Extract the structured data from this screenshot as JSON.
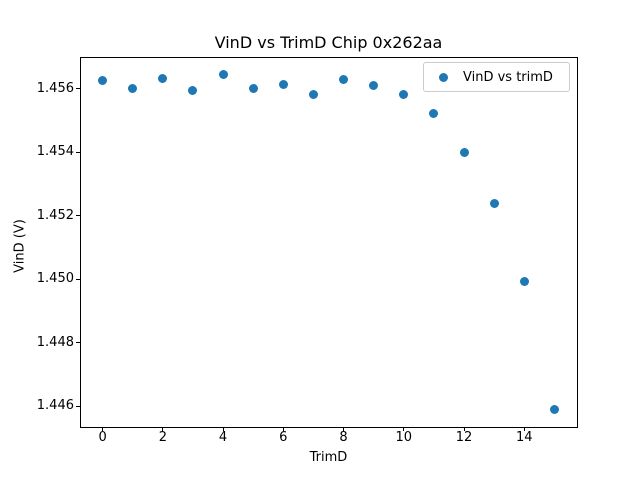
{
  "chart_data": {
    "type": "scatter",
    "title": "VinD vs TrimD Chip 0x262aa",
    "xlabel": "TrimD",
    "ylabel": "VinD (V)",
    "legend": [
      "VinD vs trimD"
    ],
    "legend_position": "upper right",
    "marker_color": "#1f77b4",
    "x": [
      0,
      1,
      2,
      3,
      4,
      5,
      6,
      7,
      8,
      9,
      10,
      11,
      12,
      13,
      14,
      15
    ],
    "y": [
      1.45625,
      1.45602,
      1.45632,
      1.45595,
      1.45646,
      1.45602,
      1.45613,
      1.45581,
      1.45628,
      1.45609,
      1.45583,
      1.45523,
      1.454,
      1.45239,
      1.44994,
      1.44589
    ],
    "xlim": [
      -0.75,
      15.75
    ],
    "ylim": [
      1.44534,
      1.457
    ],
    "xticks": [
      0,
      2,
      4,
      6,
      8,
      10,
      12,
      14
    ],
    "yticks": [
      1.446,
      1.448,
      1.45,
      1.452,
      1.454,
      1.456
    ],
    "ytick_decimals": 3,
    "grid": false
  }
}
